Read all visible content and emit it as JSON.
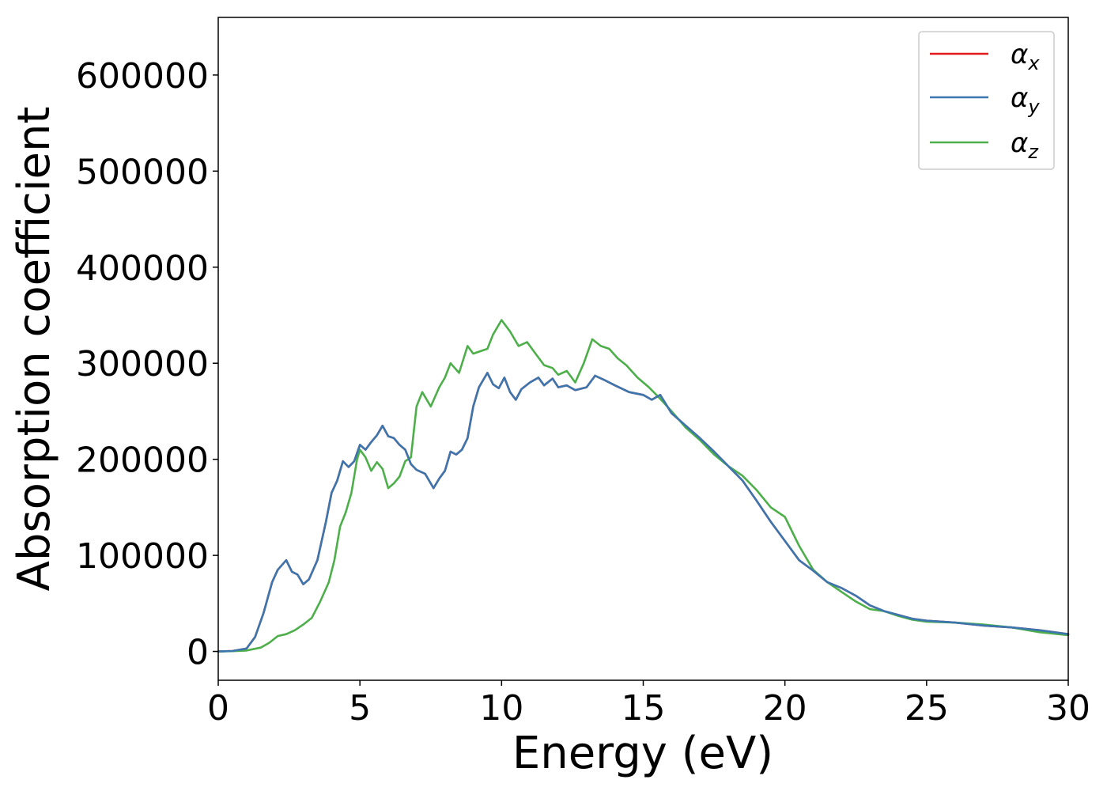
{
  "chart_data": {
    "type": "line",
    "title": "",
    "xlabel": "Energy (eV)",
    "ylabel": "Absorption coefficient",
    "xlim": [
      0,
      30
    ],
    "ylim": [
      -30000,
      660000
    ],
    "xticks": [
      0,
      5,
      10,
      15,
      20,
      25,
      30
    ],
    "yticks": [
      0,
      100000,
      200000,
      300000,
      400000,
      500000,
      600000
    ],
    "grid": false,
    "legend_position": "top-right",
    "series": [
      {
        "name": "α_x",
        "legend_symbol": "α",
        "legend_subscript": "x",
        "color": "#e41a1c",
        "x": [
          0,
          0.5,
          1.0,
          1.3,
          1.6,
          1.9,
          2.1,
          2.4,
          2.6,
          2.8,
          3.0,
          3.2,
          3.5,
          3.8,
          4.0,
          4.2,
          4.4,
          4.6,
          4.8,
          5.0,
          5.2,
          5.4,
          5.6,
          5.8,
          6.0,
          6.2,
          6.4,
          6.6,
          6.8,
          7.0,
          7.3,
          7.6,
          7.8,
          8.0,
          8.2,
          8.4,
          8.6,
          8.8,
          9.0,
          9.2,
          9.5,
          9.7,
          9.9,
          10.1,
          10.3,
          10.5,
          10.7,
          11.0,
          11.3,
          11.5,
          11.8,
          12.0,
          12.3,
          12.6,
          13.0,
          13.3,
          13.6,
          14.0,
          14.5,
          15.0,
          15.3,
          15.6,
          16.0,
          16.5,
          17.0,
          17.5,
          18.0,
          18.5,
          19.0,
          19.5,
          20.0,
          20.5,
          21.0,
          21.5,
          22.0,
          22.5,
          23.0,
          23.5,
          24.0,
          24.5,
          25.0,
          26.0,
          27.0,
          28.0,
          29.0,
          30.0
        ],
        "values": [
          0,
          500,
          3000,
          15000,
          40000,
          72000,
          85000,
          95000,
          83000,
          80000,
          70000,
          75000,
          95000,
          135000,
          165000,
          178000,
          198000,
          192000,
          198000,
          215000,
          210000,
          218000,
          225000,
          235000,
          224000,
          222000,
          215000,
          210000,
          195000,
          189000,
          185000,
          170000,
          180000,
          188000,
          208000,
          205000,
          210000,
          222000,
          255000,
          275000,
          290000,
          278000,
          274000,
          285000,
          270000,
          262000,
          273000,
          280000,
          285000,
          277000,
          284000,
          275000,
          277000,
          272000,
          275000,
          287000,
          283000,
          277000,
          270000,
          267000,
          262000,
          267000,
          248000,
          235000,
          222000,
          208000,
          193000,
          178000,
          157000,
          135000,
          115000,
          95000,
          84000,
          72000,
          66000,
          58000,
          48000,
          42000,
          38000,
          34000,
          32000,
          30000,
          27000,
          25000,
          22000,
          18000
        ]
      },
      {
        "name": "α_y",
        "legend_symbol": "α",
        "legend_subscript": "y",
        "color": "#3b76af",
        "x": [
          0,
          0.5,
          1.0,
          1.3,
          1.6,
          1.9,
          2.1,
          2.4,
          2.6,
          2.8,
          3.0,
          3.2,
          3.5,
          3.8,
          4.0,
          4.2,
          4.4,
          4.6,
          4.8,
          5.0,
          5.2,
          5.4,
          5.6,
          5.8,
          6.0,
          6.2,
          6.4,
          6.6,
          6.8,
          7.0,
          7.3,
          7.6,
          7.8,
          8.0,
          8.2,
          8.4,
          8.6,
          8.8,
          9.0,
          9.2,
          9.5,
          9.7,
          9.9,
          10.1,
          10.3,
          10.5,
          10.7,
          11.0,
          11.3,
          11.5,
          11.8,
          12.0,
          12.3,
          12.6,
          13.0,
          13.3,
          13.6,
          14.0,
          14.5,
          15.0,
          15.3,
          15.6,
          16.0,
          16.5,
          17.0,
          17.5,
          18.0,
          18.5,
          19.0,
          19.5,
          20.0,
          20.5,
          21.0,
          21.5,
          22.0,
          22.5,
          23.0,
          23.5,
          24.0,
          24.5,
          25.0,
          26.0,
          27.0,
          28.0,
          29.0,
          30.0
        ],
        "values": [
          0,
          500,
          3000,
          15000,
          40000,
          72000,
          85000,
          95000,
          83000,
          80000,
          70000,
          75000,
          95000,
          135000,
          165000,
          178000,
          198000,
          192000,
          198000,
          215000,
          210000,
          218000,
          225000,
          235000,
          224000,
          222000,
          215000,
          210000,
          195000,
          189000,
          185000,
          170000,
          180000,
          188000,
          208000,
          205000,
          210000,
          222000,
          255000,
          275000,
          290000,
          278000,
          274000,
          285000,
          270000,
          262000,
          273000,
          280000,
          285000,
          277000,
          284000,
          275000,
          277000,
          272000,
          275000,
          287000,
          283000,
          277000,
          270000,
          267000,
          262000,
          267000,
          248000,
          235000,
          222000,
          208000,
          193000,
          178000,
          157000,
          135000,
          115000,
          95000,
          84000,
          72000,
          66000,
          58000,
          48000,
          42000,
          38000,
          34000,
          32000,
          30000,
          27000,
          25000,
          22000,
          18000
        ]
      },
      {
        "name": "α_z",
        "legend_symbol": "α",
        "legend_subscript": "z",
        "color": "#4daf4a",
        "x": [
          0,
          0.5,
          1.0,
          1.5,
          1.8,
          2.1,
          2.4,
          2.7,
          3.0,
          3.3,
          3.6,
          3.9,
          4.1,
          4.3,
          4.5,
          4.7,
          4.9,
          5.0,
          5.2,
          5.4,
          5.6,
          5.8,
          6.0,
          6.2,
          6.4,
          6.6,
          6.8,
          7.0,
          7.2,
          7.5,
          7.8,
          8.0,
          8.2,
          8.5,
          8.8,
          9.0,
          9.2,
          9.5,
          9.7,
          10.0,
          10.3,
          10.6,
          10.9,
          11.2,
          11.5,
          11.8,
          12.0,
          12.3,
          12.6,
          12.9,
          13.2,
          13.5,
          13.8,
          14.1,
          14.4,
          14.8,
          15.2,
          15.6,
          16.0,
          16.5,
          17.0,
          17.5,
          18.0,
          18.5,
          19.0,
          19.5,
          20.0,
          20.5,
          21.0,
          21.5,
          22.0,
          22.5,
          23.0,
          23.5,
          24.0,
          24.5,
          25.0,
          26.0,
          27.0,
          28.0,
          29.0,
          30.0
        ],
        "values": [
          0,
          300,
          1000,
          4000,
          9000,
          16000,
          18000,
          22000,
          28000,
          35000,
          52000,
          72000,
          95000,
          130000,
          145000,
          165000,
          200000,
          210000,
          202000,
          188000,
          197000,
          190000,
          170000,
          175000,
          182000,
          198000,
          202000,
          255000,
          270000,
          255000,
          275000,
          285000,
          300000,
          290000,
          318000,
          310000,
          312000,
          315000,
          330000,
          345000,
          333000,
          318000,
          322000,
          310000,
          298000,
          295000,
          288000,
          292000,
          280000,
          300000,
          325000,
          318000,
          315000,
          305000,
          298000,
          285000,
          275000,
          263000,
          250000,
          233000,
          220000,
          205000,
          193000,
          183000,
          168000,
          150000,
          140000,
          110000,
          85000,
          72000,
          62000,
          52000,
          44000,
          42000,
          37000,
          33000,
          31000,
          30000,
          28000,
          25000,
          20000,
          17000
        ]
      }
    ]
  }
}
